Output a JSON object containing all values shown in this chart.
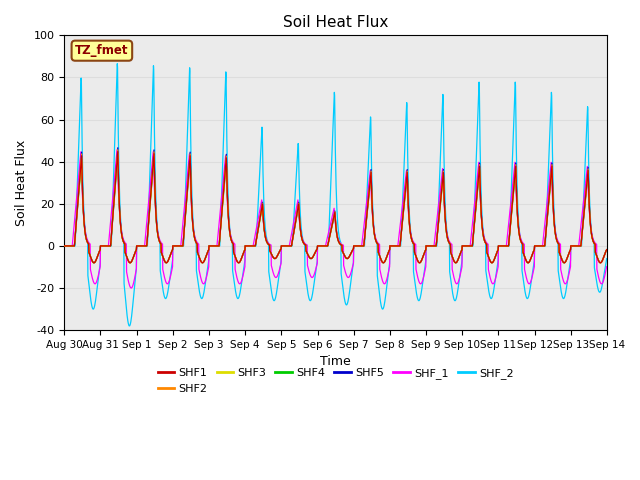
{
  "title": "Soil Heat Flux",
  "xlabel": "Time",
  "ylabel": "Soil Heat Flux",
  "ylim": [
    -40,
    100
  ],
  "xlim_days": [
    0,
    15
  ],
  "annotation_text": "TZ_fmet",
  "annotation_bg": "#FFFF99",
  "annotation_border": "#8B4513",
  "series": [
    "SHF1",
    "SHF2",
    "SHF3",
    "SHF4",
    "SHF5",
    "SHF_1",
    "SHF_2"
  ],
  "colors": {
    "SHF1": "#CC0000",
    "SHF2": "#FF8800",
    "SHF3": "#DDDD00",
    "SHF4": "#00CC00",
    "SHF5": "#0000CC",
    "SHF_1": "#FF00FF",
    "SHF_2": "#00CCFF"
  },
  "xtick_labels": [
    "Aug 30",
    "Aug 31",
    "Sep 1",
    "Sep 2",
    "Sep 3",
    "Sep 4",
    "Sep 5",
    "Sep 6",
    "Sep 7",
    "Sep 8",
    "Sep 9",
    "Sep 10",
    "Sep 11",
    "Sep 12",
    "Sep 13",
    "Sep 14"
  ],
  "xtick_positions": [
    0,
    1,
    2,
    3,
    4,
    5,
    6,
    7,
    8,
    9,
    10,
    11,
    12,
    13,
    14,
    15
  ],
  "ytick_positions": [
    -40,
    -20,
    0,
    20,
    40,
    60,
    80,
    100
  ],
  "grid_color": "#DDDDDD",
  "plot_bg": "#EBEBEB"
}
